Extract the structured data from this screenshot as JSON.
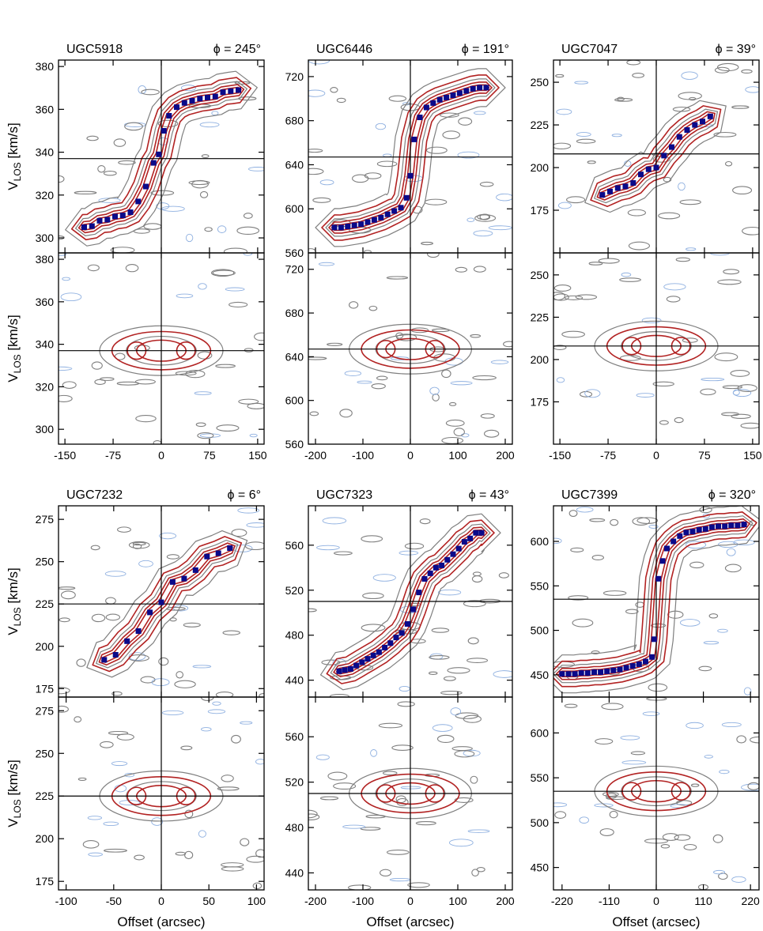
{
  "figure": {
    "xlabel": "Offset (arcsec)",
    "ylabel_main": "V",
    "ylabel_sub": "LOS",
    "ylabel_unit": " [km/s]",
    "colors": {
      "model": "#b22222",
      "data": "#7f7f7f",
      "negative": "#8fb0e0",
      "points": "#0a0a8a",
      "axis": "#000000"
    }
  },
  "chart_data": [
    {
      "type": "scatter",
      "galaxy": "UGC5918",
      "phi_label": "ϕ = 245°",
      "xlim": [
        -160,
        160
      ],
      "xticks": [
        -150,
        -75,
        0,
        75,
        150
      ],
      "ylim_major": [
        293,
        383
      ],
      "yticks_major": [
        300,
        320,
        340,
        360,
        380
      ],
      "ylim_minor": [
        293,
        383
      ],
      "yticks_minor": [
        300,
        320,
        340,
        360,
        380
      ],
      "vsys": 337,
      "rotation_points": {
        "x": [
          -120,
          -108,
          -96,
          -84,
          -72,
          -60,
          -48,
          -36,
          -24,
          -12,
          -4,
          4,
          12,
          24,
          36,
          48,
          60,
          72,
          84,
          96,
          108,
          120
        ],
        "y": [
          305,
          305.5,
          308,
          308.5,
          310,
          310.5,
          312,
          317,
          324,
          335,
          339,
          350,
          357,
          361,
          363,
          364,
          365,
          365.5,
          366,
          368,
          368.5,
          369
        ]
      }
    },
    {
      "type": "scatter",
      "galaxy": "UGC6446",
      "phi_label": "ϕ = 191°",
      "xlim": [
        -215,
        215
      ],
      "xticks": [
        -200,
        -100,
        0,
        100,
        200
      ],
      "ylim_major": [
        560,
        735
      ],
      "yticks_major": [
        560,
        600,
        640,
        680,
        720
      ],
      "ylim_minor": [
        560,
        735
      ],
      "yticks_minor": [
        560,
        600,
        640,
        680,
        720
      ],
      "vsys": 647,
      "rotation_points": {
        "x": [
          -160,
          -146,
          -132,
          -118,
          -104,
          -90,
          -76,
          -62,
          -48,
          -34,
          -20,
          -8,
          0,
          8,
          20,
          34,
          48,
          62,
          76,
          90,
          104,
          118,
          132,
          146,
          160
        ],
        "y": [
          583,
          583,
          584,
          585,
          586,
          588,
          590,
          592,
          595,
          598,
          601,
          610,
          630,
          663,
          683,
          692,
          696,
          699,
          701,
          703,
          705,
          707,
          709,
          710,
          710
        ]
      }
    },
    {
      "type": "scatter",
      "galaxy": "UGC7047",
      "phi_label": "ϕ = 39°",
      "xlim": [
        -160,
        160
      ],
      "xticks": [
        -150,
        -75,
        0,
        75,
        150
      ],
      "ylim_major": [
        150,
        263
      ],
      "yticks_major": [
        175,
        200,
        225,
        250
      ],
      "ylim_minor": [
        150,
        263
      ],
      "yticks_minor": [
        175,
        200,
        225,
        250
      ],
      "vsys": 208,
      "rotation_points": {
        "x": [
          -84,
          -72,
          -60,
          -48,
          -36,
          -24,
          -12,
          0,
          12,
          24,
          36,
          48,
          60,
          72,
          84
        ],
        "y": [
          184,
          186,
          188,
          189,
          191,
          196,
          199,
          200,
          207,
          212,
          218,
          222,
          225,
          227,
          230
        ]
      }
    },
    {
      "type": "scatter",
      "galaxy": "UGC7232",
      "phi_label": "ϕ = 6°",
      "xlim": [
        -108,
        108
      ],
      "xticks": [
        -100,
        -50,
        0,
        50,
        100
      ],
      "ylim_major": [
        170,
        283
      ],
      "yticks_major": [
        175,
        200,
        225,
        250,
        275
      ],
      "ylim_minor": [
        170,
        283
      ],
      "yticks_minor": [
        175,
        200,
        225,
        250,
        275
      ],
      "vsys": 225,
      "rotation_points": {
        "x": [
          -60,
          -48,
          -36,
          -24,
          -12,
          0,
          12,
          24,
          36,
          48,
          60,
          72
        ],
        "y": [
          192,
          195,
          203,
          209,
          220,
          226,
          238,
          240,
          245,
          253,
          255,
          258
        ]
      }
    },
    {
      "type": "scatter",
      "galaxy": "UGC7323",
      "phi_label": "ϕ = 43°",
      "xlim": [
        -215,
        215
      ],
      "xticks": [
        -200,
        -100,
        0,
        100,
        200
      ],
      "ylim_major": [
        425,
        595
      ],
      "yticks_major": [
        440,
        480,
        520,
        560
      ],
      "ylim_minor": [
        425,
        595
      ],
      "yticks_minor": [
        440,
        480,
        520,
        560
      ],
      "vsys": 510,
      "rotation_points": {
        "x": [
          -150,
          -138,
          -126,
          -114,
          -102,
          -90,
          -78,
          -66,
          -54,
          -42,
          -30,
          -18,
          -6,
          6,
          18,
          30,
          42,
          54,
          66,
          78,
          90,
          102,
          114,
          126,
          138,
          150
        ],
        "y": [
          448,
          449,
          450,
          453,
          456,
          459,
          462,
          465,
          469,
          473,
          478,
          482,
          490,
          503,
          518,
          530,
          535,
          540,
          542,
          547,
          552,
          557,
          563,
          566,
          571,
          571
        ]
      }
    },
    {
      "type": "scatter",
      "galaxy": "UGC7399",
      "phi_label": "ϕ = 320°",
      "xlim": [
        -240,
        240
      ],
      "xticks": [
        -220,
        -110,
        0,
        110,
        220
      ],
      "ylim_major": [
        425,
        640
      ],
      "yticks_major": [
        450,
        500,
        550,
        600
      ],
      "ylim_minor": [
        425,
        640
      ],
      "yticks_minor": [
        450,
        500,
        550,
        600
      ],
      "vsys": 535,
      "rotation_points": {
        "x": [
          -220,
          -205,
          -190,
          -175,
          -160,
          -145,
          -130,
          -115,
          -100,
          -85,
          -70,
          -55,
          -40,
          -25,
          -10,
          -5,
          5,
          15,
          25,
          40,
          55,
          70,
          85,
          100,
          115,
          130,
          145,
          160,
          175,
          190,
          205
        ],
        "y": [
          451,
          451,
          451,
          452,
          452,
          453,
          453,
          454,
          455,
          456,
          458,
          460,
          462,
          465,
          470,
          490,
          558,
          578,
          592,
          600,
          606,
          610,
          611,
          613,
          614,
          616,
          617,
          617,
          618,
          618,
          619
        ]
      }
    }
  ]
}
